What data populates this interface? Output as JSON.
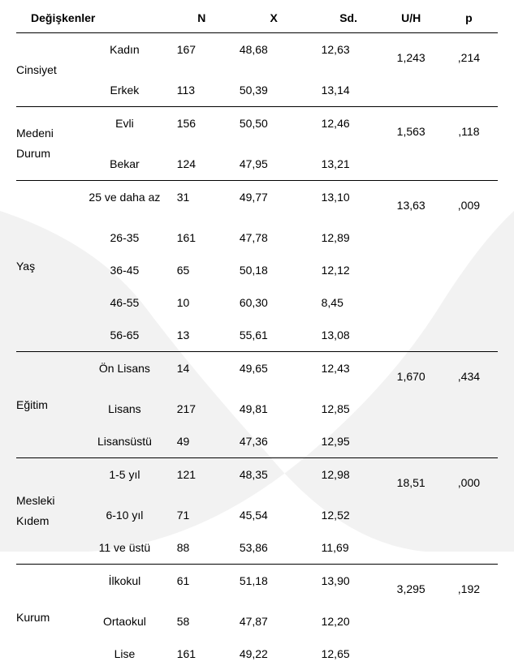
{
  "headers": {
    "variables": "Değişkenler",
    "n": "N",
    "x": "X",
    "sd": "Sd.",
    "uh": "U/H",
    "p": "p"
  },
  "groups": [
    {
      "label": "Cinsiyet",
      "uh": "1,243",
      "p": ",214",
      "rows": [
        {
          "sub": "Kadın",
          "n": "167",
          "x": "48,68",
          "sd": "12,63"
        },
        {
          "sub": "Erkek",
          "n": "113",
          "x": "50,39",
          "sd": "13,14"
        }
      ]
    },
    {
      "label": "Medeni Durum",
      "label_line1": "Medeni",
      "label_line2": "Durum",
      "uh": "1,563",
      "p": ",118",
      "rows": [
        {
          "sub": "Evli",
          "n": "156",
          "x": "50,50",
          "sd": "12,46"
        },
        {
          "sub": "Bekar",
          "n": "124",
          "x": "47,95",
          "sd": "13,21"
        }
      ]
    },
    {
      "label": "Yaş",
      "uh": "13,63",
      "p": ",009",
      "rows": [
        {
          "sub": "25 ve daha az",
          "n": "31",
          "x": "49,77",
          "sd": "13,10"
        },
        {
          "sub": "26-35",
          "n": "161",
          "x": "47,78",
          "sd": "12,89"
        },
        {
          "sub": "36-45",
          "n": "65",
          "x": "50,18",
          "sd": "12,12"
        },
        {
          "sub": "46-55",
          "n": "10",
          "x": "60,30",
          "sd": "8,45"
        },
        {
          "sub": "56-65",
          "n": "13",
          "x": "55,61",
          "sd": "13,08"
        }
      ]
    },
    {
      "label": "Eğitim",
      "uh": "1,670",
      "p": ",434",
      "rows": [
        {
          "sub": "Ön Lisans",
          "n": "14",
          "x": "49,65",
          "sd": "12,43"
        },
        {
          "sub": "Lisans",
          "n": "217",
          "x": "49,81",
          "sd": "12,85"
        },
        {
          "sub": "Lisansüstü",
          "n": "49",
          "x": "47,36",
          "sd": "12,95"
        }
      ]
    },
    {
      "label": "Mesleki Kıdem",
      "label_line1": "Mesleki",
      "label_line2": "Kıdem",
      "uh": "18,51",
      "p": ",000",
      "rows": [
        {
          "sub": "1-5 yıl",
          "n": "121",
          "x": "48,35",
          "sd": "12,98"
        },
        {
          "sub": "6-10 yıl",
          "n": "71",
          "x": "45,54",
          "sd": "12,52"
        },
        {
          "sub": "11 ve üstü",
          "n": "88",
          "x": "53,86",
          "sd": "11,69"
        }
      ]
    },
    {
      "label": "Kurum",
      "uh": "3,295",
      "p": ",192",
      "rows": [
        {
          "sub": "İlkokul",
          "n": "61",
          "x": "51,18",
          "sd": "13,90"
        },
        {
          "sub": "Ortaokul",
          "n": "58",
          "x": "47,87",
          "sd": "12,20"
        },
        {
          "sub": "Lise",
          "n": "161",
          "x": "49,22",
          "sd": "12,65"
        }
      ]
    }
  ]
}
